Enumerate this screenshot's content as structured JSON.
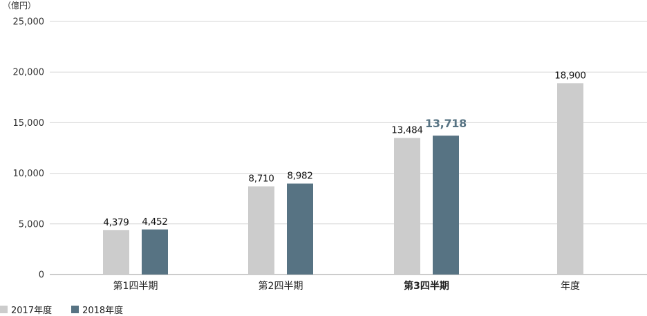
{
  "chart_data": {
    "type": "bar",
    "unit_label": "（億円）",
    "categories": [
      "第1四半期",
      "第2四半期",
      "第3四半期",
      "年度"
    ],
    "highlight_category_index": 2,
    "ylim": [
      0,
      25000
    ],
    "yticks": [
      0,
      5000,
      10000,
      15000,
      20000,
      25000
    ],
    "ytick_labels": [
      "0",
      "5,000",
      "10,000",
      "15,000",
      "20,000",
      "25,000"
    ],
    "grid": true,
    "legend_position": "bottom-left",
    "series": [
      {
        "name": "2017年度",
        "color": "#cccccc",
        "values": [
          4379,
          8710,
          13484,
          18900
        ],
        "labels": [
          "4,379",
          "8,710",
          "13,484",
          "18,900"
        ]
      },
      {
        "name": "2018年度",
        "color": "#577383",
        "values": [
          4452,
          8982,
          13718,
          null
        ],
        "labels": [
          "4,452",
          "8,982",
          "13,718",
          null
        ]
      }
    ]
  }
}
